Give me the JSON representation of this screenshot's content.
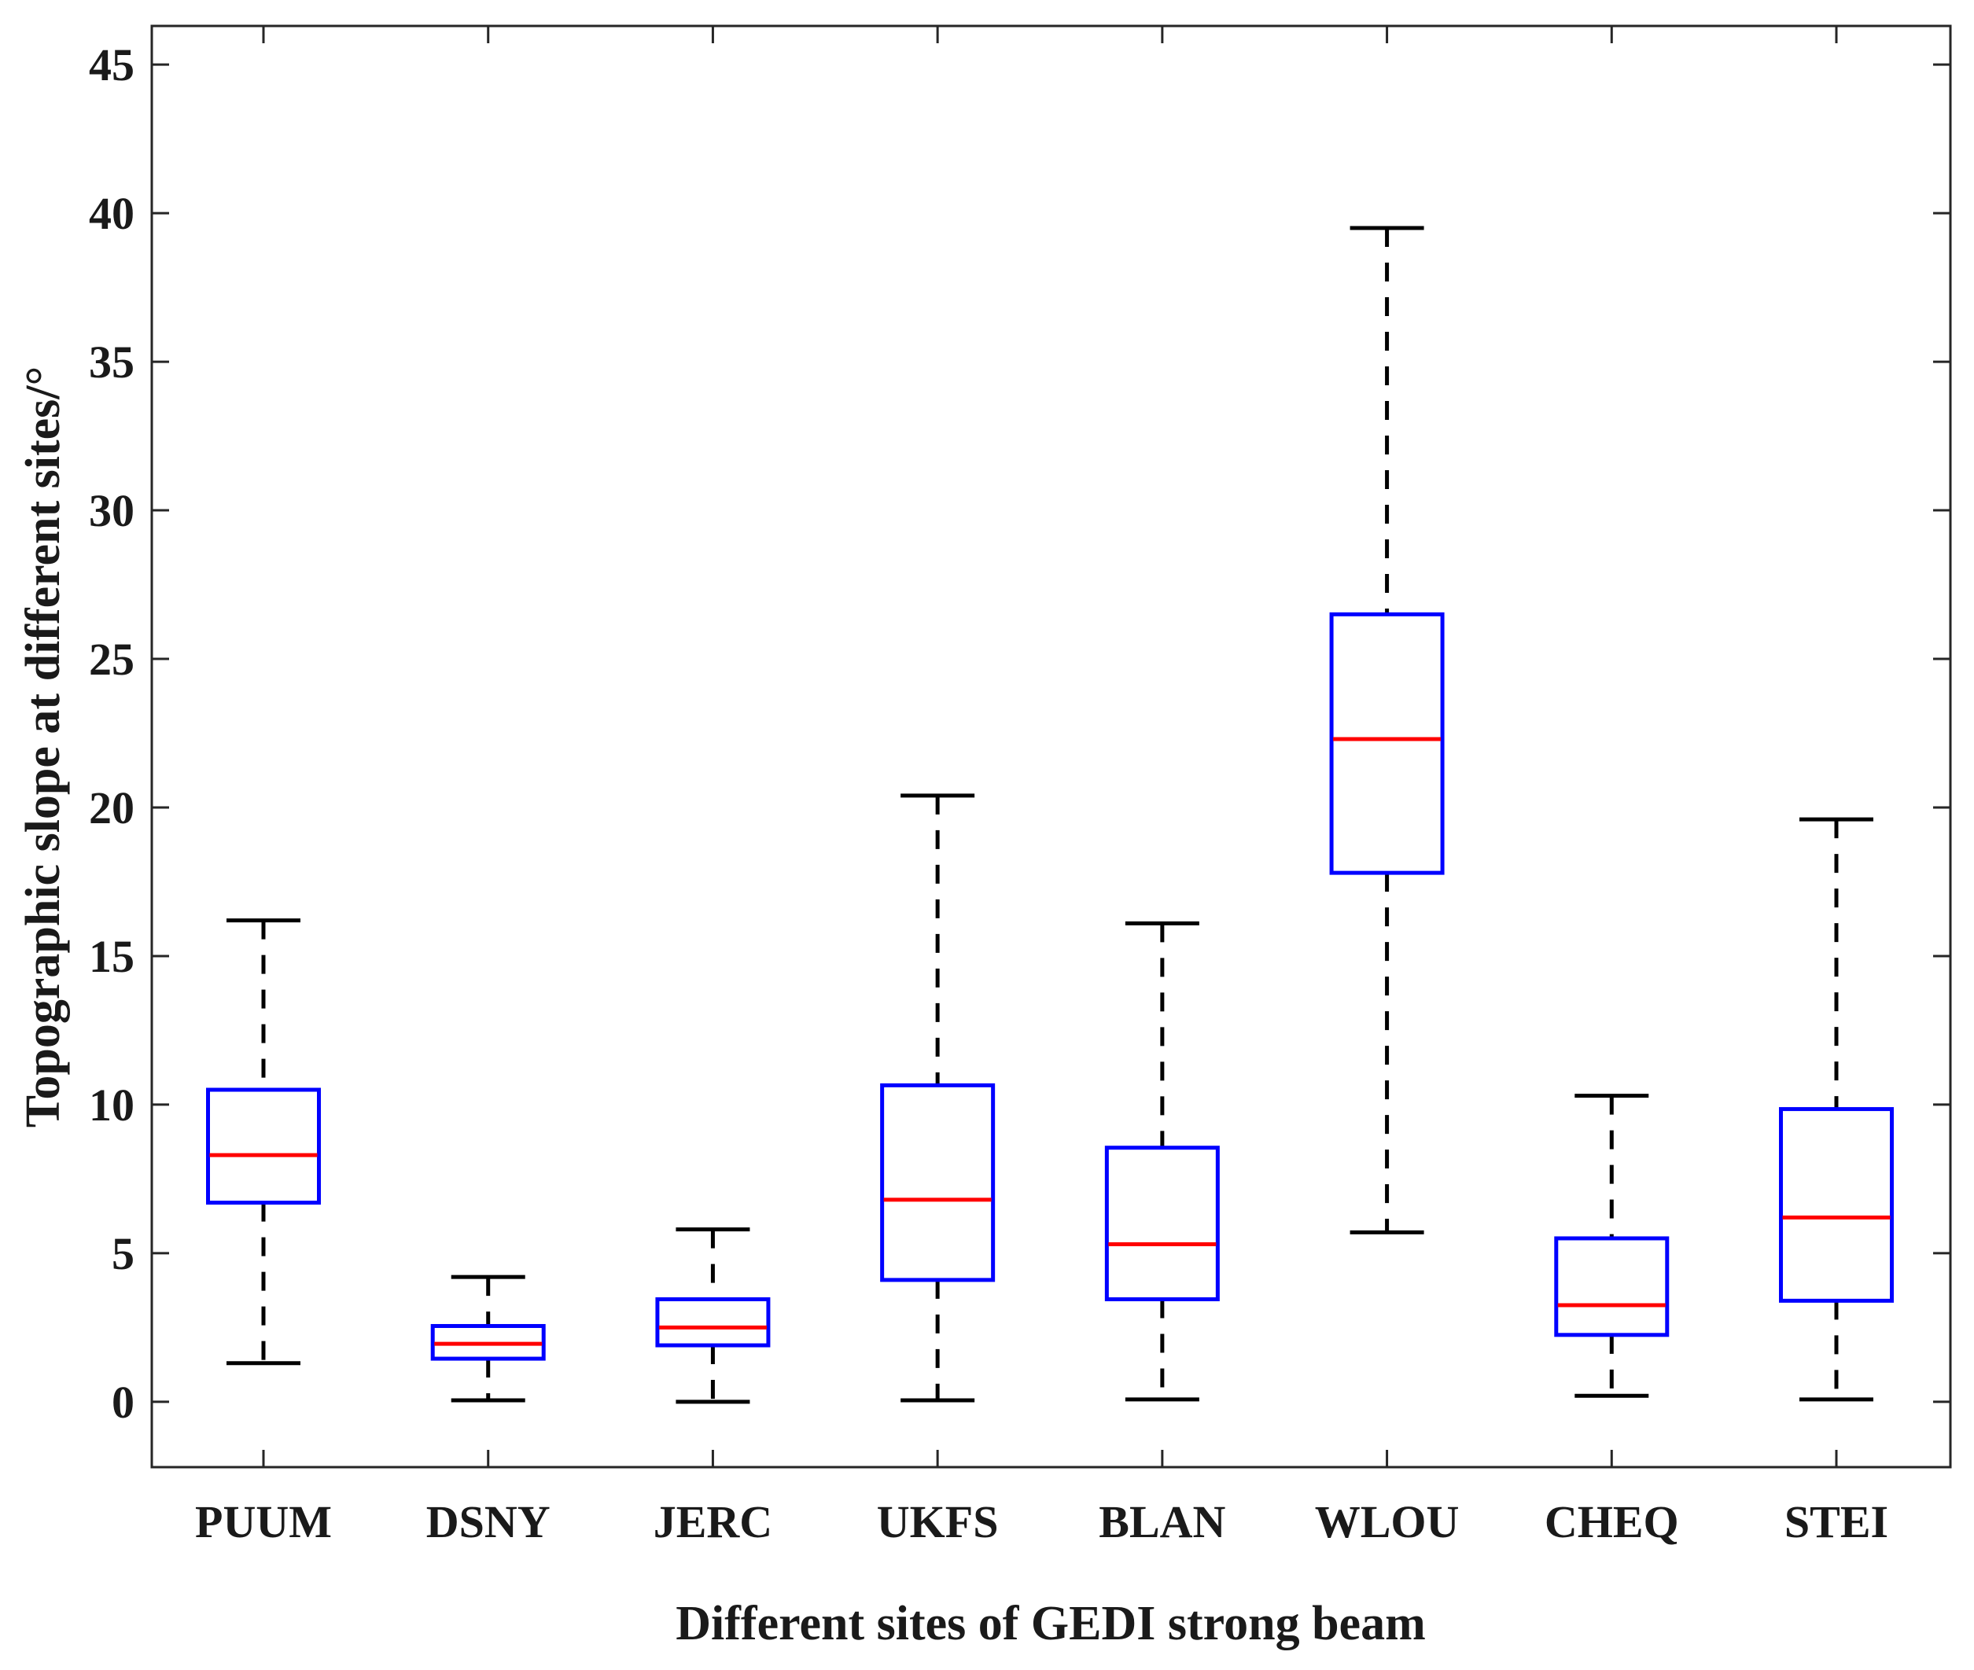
{
  "chart_data": {
    "type": "boxplot",
    "title": "",
    "xlabel": "Different sites of GEDI strong beam",
    "ylabel": "Topographic slope at different sites/°",
    "ylim": [
      -2.2,
      46.3
    ],
    "yticks": [
      0,
      5,
      10,
      15,
      20,
      25,
      30,
      35,
      40,
      45
    ],
    "categories": [
      "PUUM",
      "DSNY",
      "JERC",
      "UKFS",
      "BLAN",
      "WLOU",
      "CHEQ",
      "STEI"
    ],
    "boxes": [
      {
        "site": "PUUM",
        "whisker_low": 1.3,
        "q1": 6.7,
        "median": 8.3,
        "q3": 10.5,
        "whisker_high": 16.2
      },
      {
        "site": "DSNY",
        "whisker_low": 0.05,
        "q1": 1.45,
        "median": 1.95,
        "q3": 2.55,
        "whisker_high": 4.2
      },
      {
        "site": "JERC",
        "whisker_low": 0.0,
        "q1": 1.9,
        "median": 2.5,
        "q3": 3.45,
        "whisker_high": 5.8
      },
      {
        "site": "UKFS",
        "whisker_low": 0.05,
        "q1": 4.1,
        "median": 6.8,
        "q3": 10.65,
        "whisker_high": 20.4
      },
      {
        "site": "BLAN",
        "whisker_low": 0.08,
        "q1": 3.45,
        "median": 5.3,
        "q3": 8.55,
        "whisker_high": 16.1
      },
      {
        "site": "WLOU",
        "whisker_low": 5.7,
        "q1": 17.8,
        "median": 22.3,
        "q3": 26.5,
        "whisker_high": 39.5
      },
      {
        "site": "CHEQ",
        "whisker_low": 0.2,
        "q1": 2.25,
        "median": 3.25,
        "q3": 5.5,
        "whisker_high": 10.3
      },
      {
        "site": "STEI",
        "whisker_low": 0.08,
        "q1": 3.4,
        "median": 6.2,
        "q3": 9.85,
        "whisker_high": 19.6
      }
    ],
    "colors": {
      "box": "#0000ff",
      "median": "#ff0000",
      "whisker": "#000000",
      "axis": "#262626"
    },
    "grid": false,
    "legend": "none"
  }
}
